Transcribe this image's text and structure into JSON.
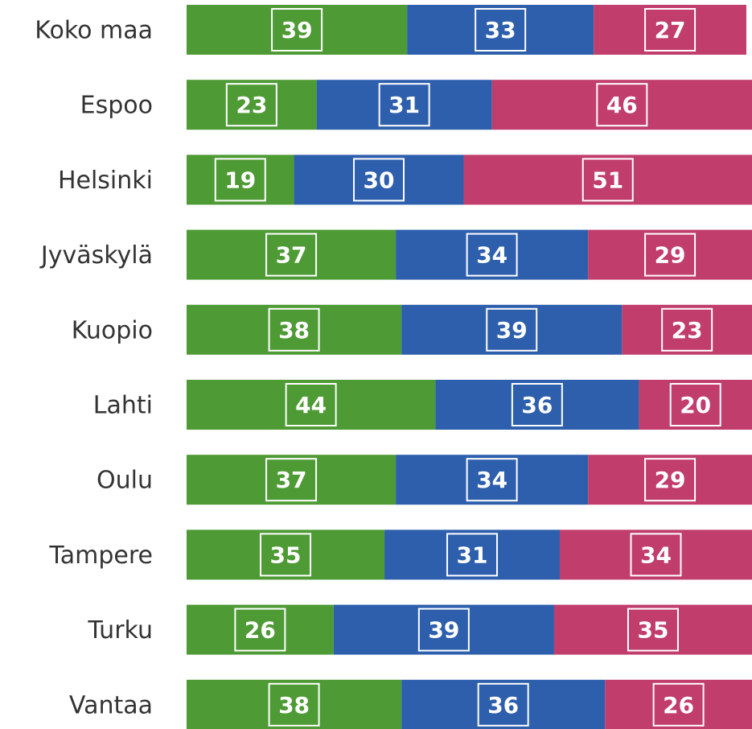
{
  "chart_data": {
    "type": "stacked-bar",
    "orientation": "horizontal",
    "categories": [
      "Koko maa",
      "Espoo",
      "Helsinki",
      "Jyväskylä",
      "Kuopio",
      "Lahti",
      "Oulu",
      "Tampere",
      "Turku",
      "Vantaa"
    ],
    "series": [
      {
        "color": "#4e9a35",
        "values": [
          39,
          23,
          19,
          37,
          38,
          44,
          37,
          35,
          26,
          38
        ]
      },
      {
        "color": "#2e5fac",
        "values": [
          33,
          31,
          30,
          34,
          39,
          36,
          34,
          31,
          39,
          36
        ]
      },
      {
        "color": "#c03d6c",
        "values": [
          27,
          46,
          51,
          29,
          23,
          20,
          29,
          34,
          35,
          26
        ]
      }
    ],
    "xlim": [
      0,
      100
    ]
  }
}
